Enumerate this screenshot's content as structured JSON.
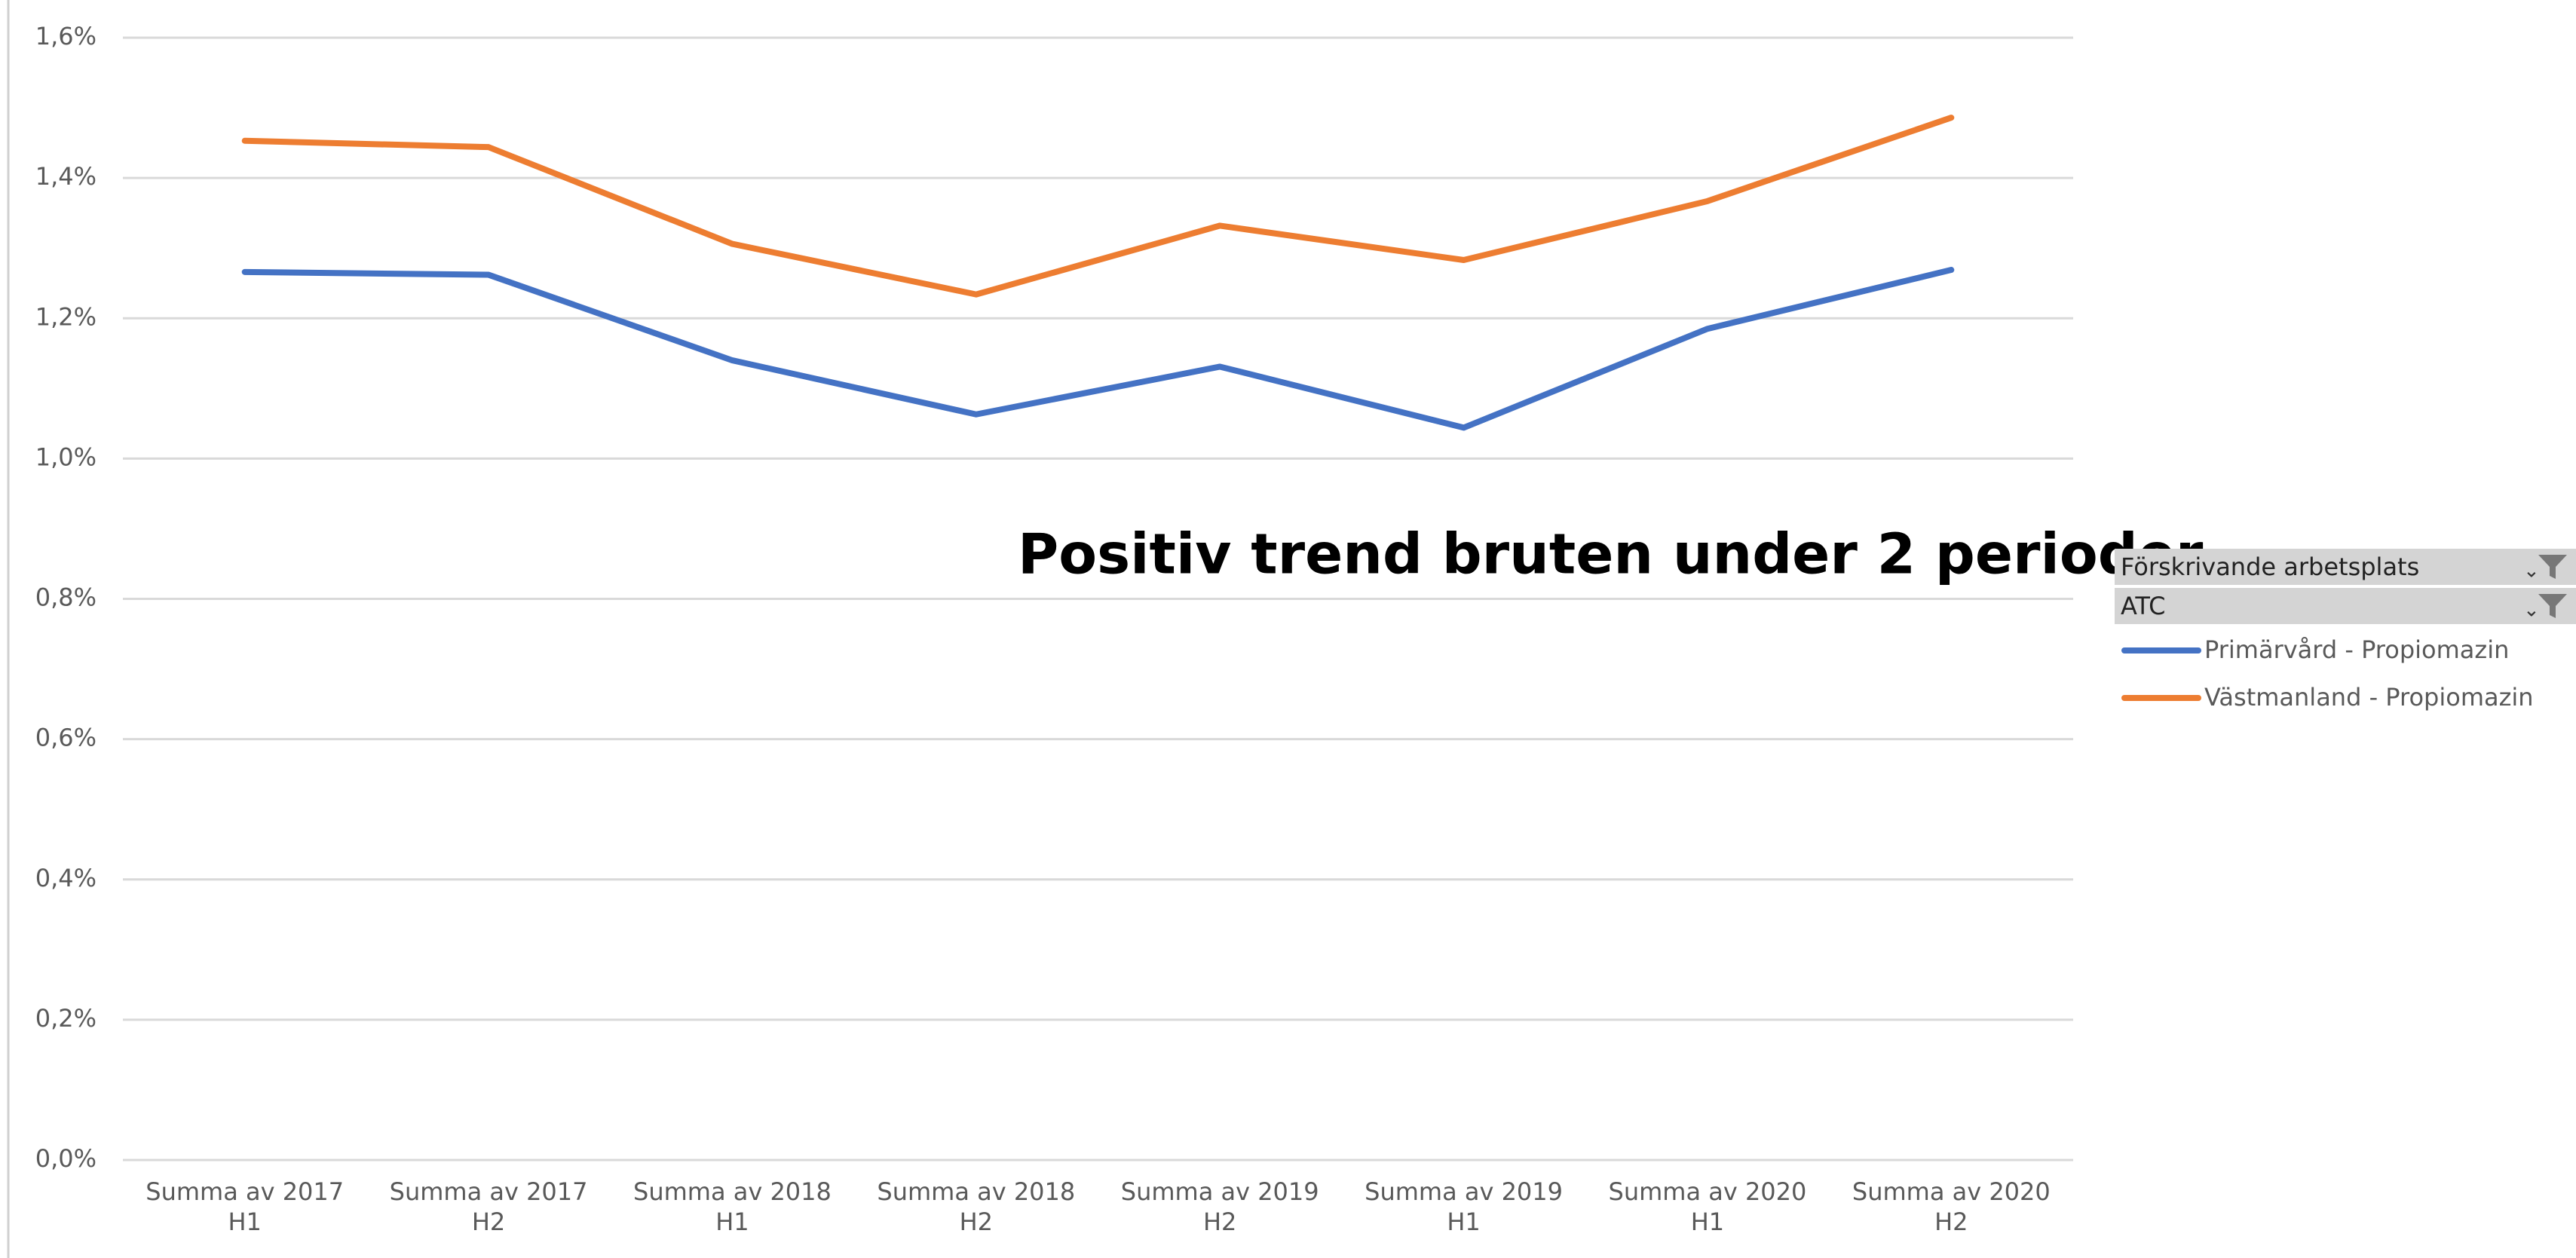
{
  "chart_data": {
    "type": "line",
    "annotation": "Positiv trend bruten under 2 perioder",
    "filters": [
      "Förskrivande arbetsplats",
      "ATC"
    ],
    "categories": [
      "Summa av 2017 H1",
      "Summa av 2017 H2",
      "Summa av 2018 H1",
      "Summa av 2018 H2",
      "Summa av 2019 H2",
      "Summa av 2019 H1",
      "Summa av 2020 H1",
      "Summa av 2020 H2"
    ],
    "series": [
      {
        "name": "Primärvård - Propiomazin",
        "color": "#4472c4",
        "values": [
          1.266,
          1.262,
          1.14,
          1.063,
          1.131,
          1.044,
          1.185,
          1.269
        ]
      },
      {
        "name": "Västmanland - Propiomazin",
        "color": "#ed7d31",
        "values": [
          1.453,
          1.444,
          1.306,
          1.234,
          1.332,
          1.283,
          1.367,
          1.486
        ]
      }
    ],
    "ylim": [
      0,
      1.6
    ],
    "yticks": [
      {
        "value": 0,
        "label": "0,0%"
      },
      {
        "value": 0.2,
        "label": "0,2%"
      },
      {
        "value": 0.4,
        "label": "0,4%"
      },
      {
        "value": 0.6,
        "label": "0,6%"
      },
      {
        "value": 0.8,
        "label": "0,8%"
      },
      {
        "value": 1.0,
        "label": "1,0%"
      },
      {
        "value": 1.2,
        "label": "1,2%"
      },
      {
        "value": 1.4,
        "label": "1,4%"
      },
      {
        "value": 1.6,
        "label": "1,6%"
      }
    ],
    "grid": true
  }
}
